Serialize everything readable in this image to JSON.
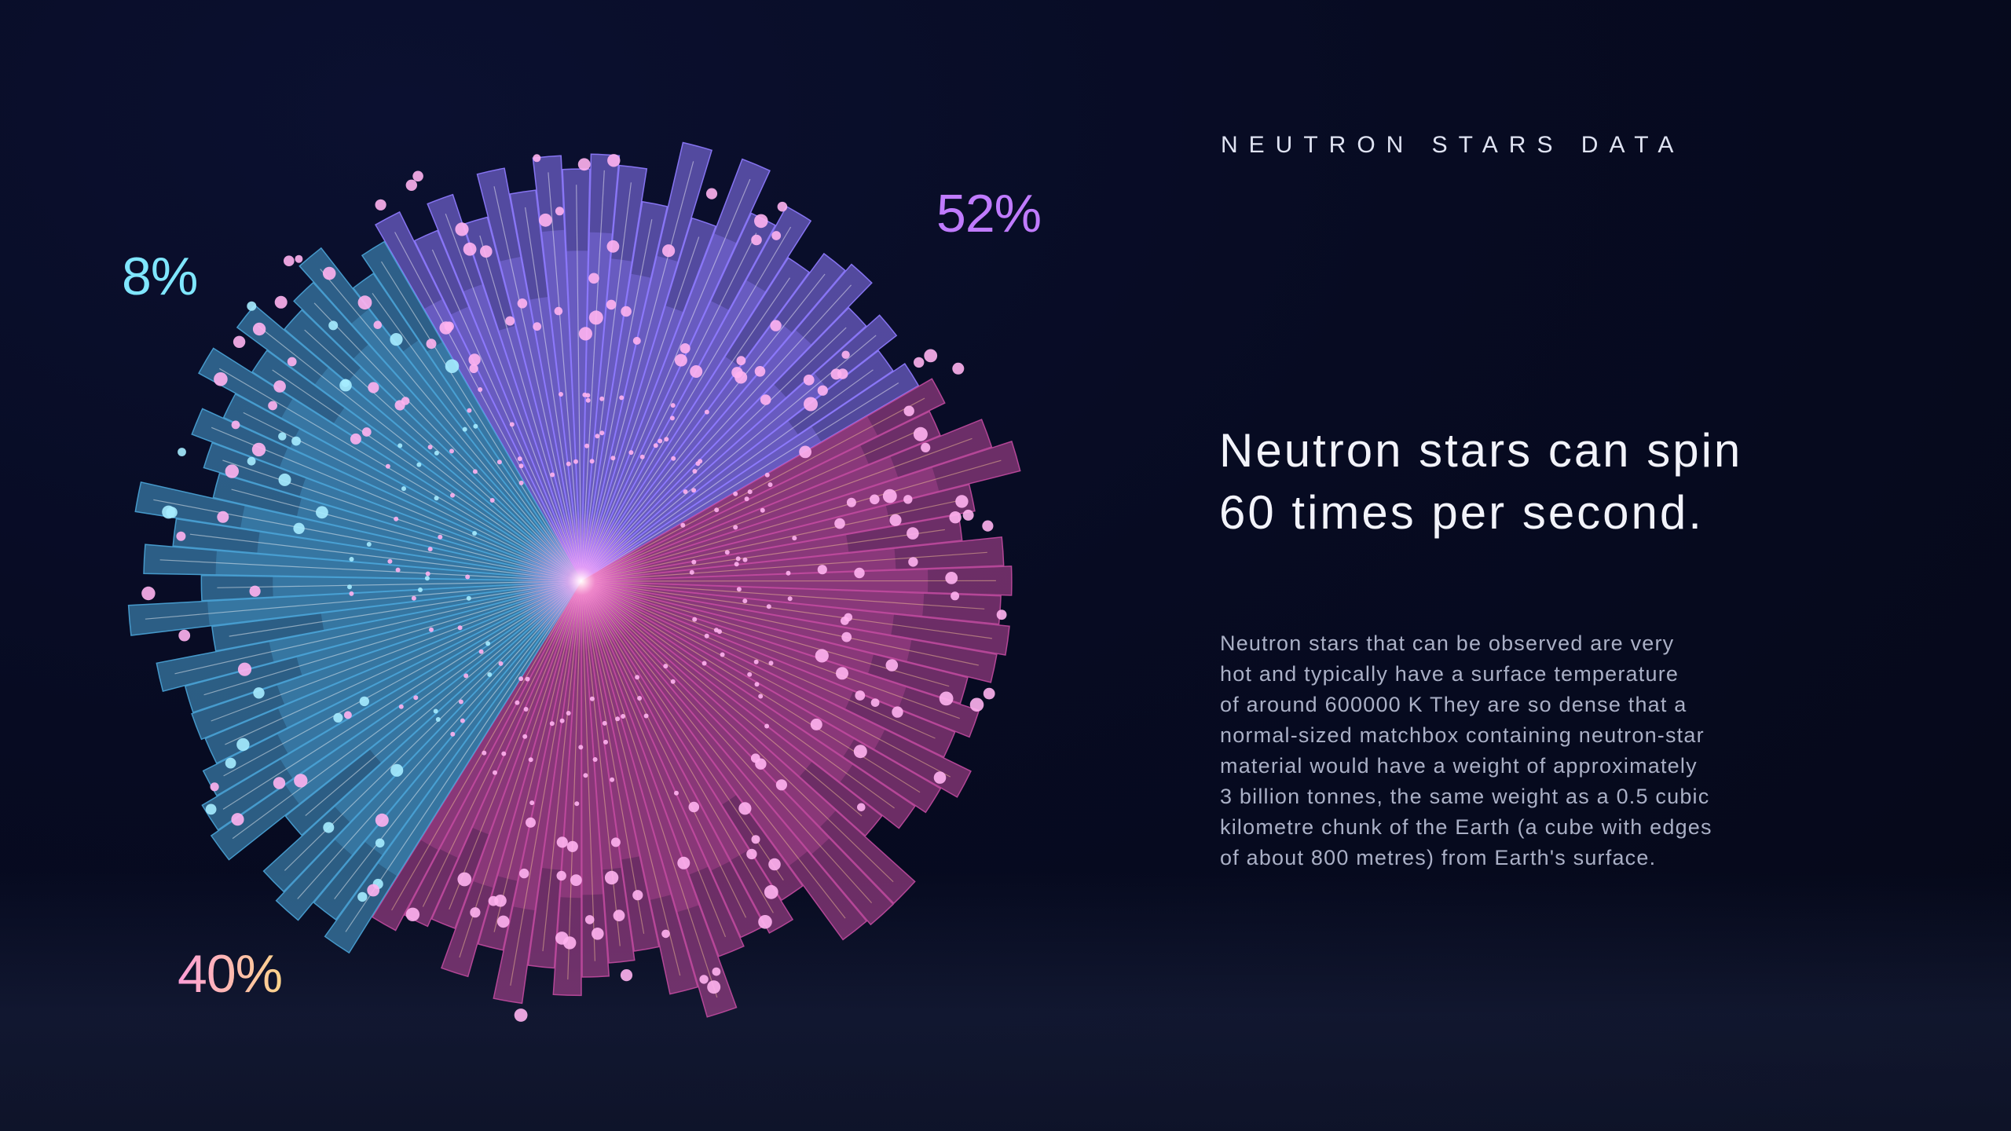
{
  "header": {
    "kicker": "NEUTRON STARS DATA"
  },
  "headline": {
    "line1": "Neutron stars can spin",
    "line2": "60 times per second."
  },
  "body": {
    "lines": [
      "Neutron stars that can be observed are very",
      "hot and typically have a surface temperature",
      "of around 600000 K They are so dense that a",
      "normal-sized matchbox containing neutron-star",
      "material would have a weight of approximately",
      "3 billion tonnes, the same weight as a 0.5 cubic",
      "kilometre chunk of the Earth (a cube with edges",
      "of about 800 metres) from Earth's surface."
    ]
  },
  "colors": {
    "cyan_segment": "#4aa3d6",
    "purple_segment": "#8f7bff",
    "pink_segment": "#c04a9e",
    "dots": "#ffb3f0",
    "cyan_dots": "#a6ecff"
  },
  "chart_data": {
    "type": "radial-bar",
    "segments": [
      {
        "label": "52%",
        "value": 52,
        "color": "#8f7bff",
        "start_deg": -30,
        "end_deg": 60
      },
      {
        "label": "40%",
        "value": 40,
        "color": "#c04a9e",
        "start_deg": 60,
        "end_deg": 212
      },
      {
        "label": "8%",
        "value": 8,
        "color": "#4aa3d6",
        "start_deg": 212,
        "end_deg": 330
      }
    ],
    "legend": "none",
    "grid": false
  }
}
